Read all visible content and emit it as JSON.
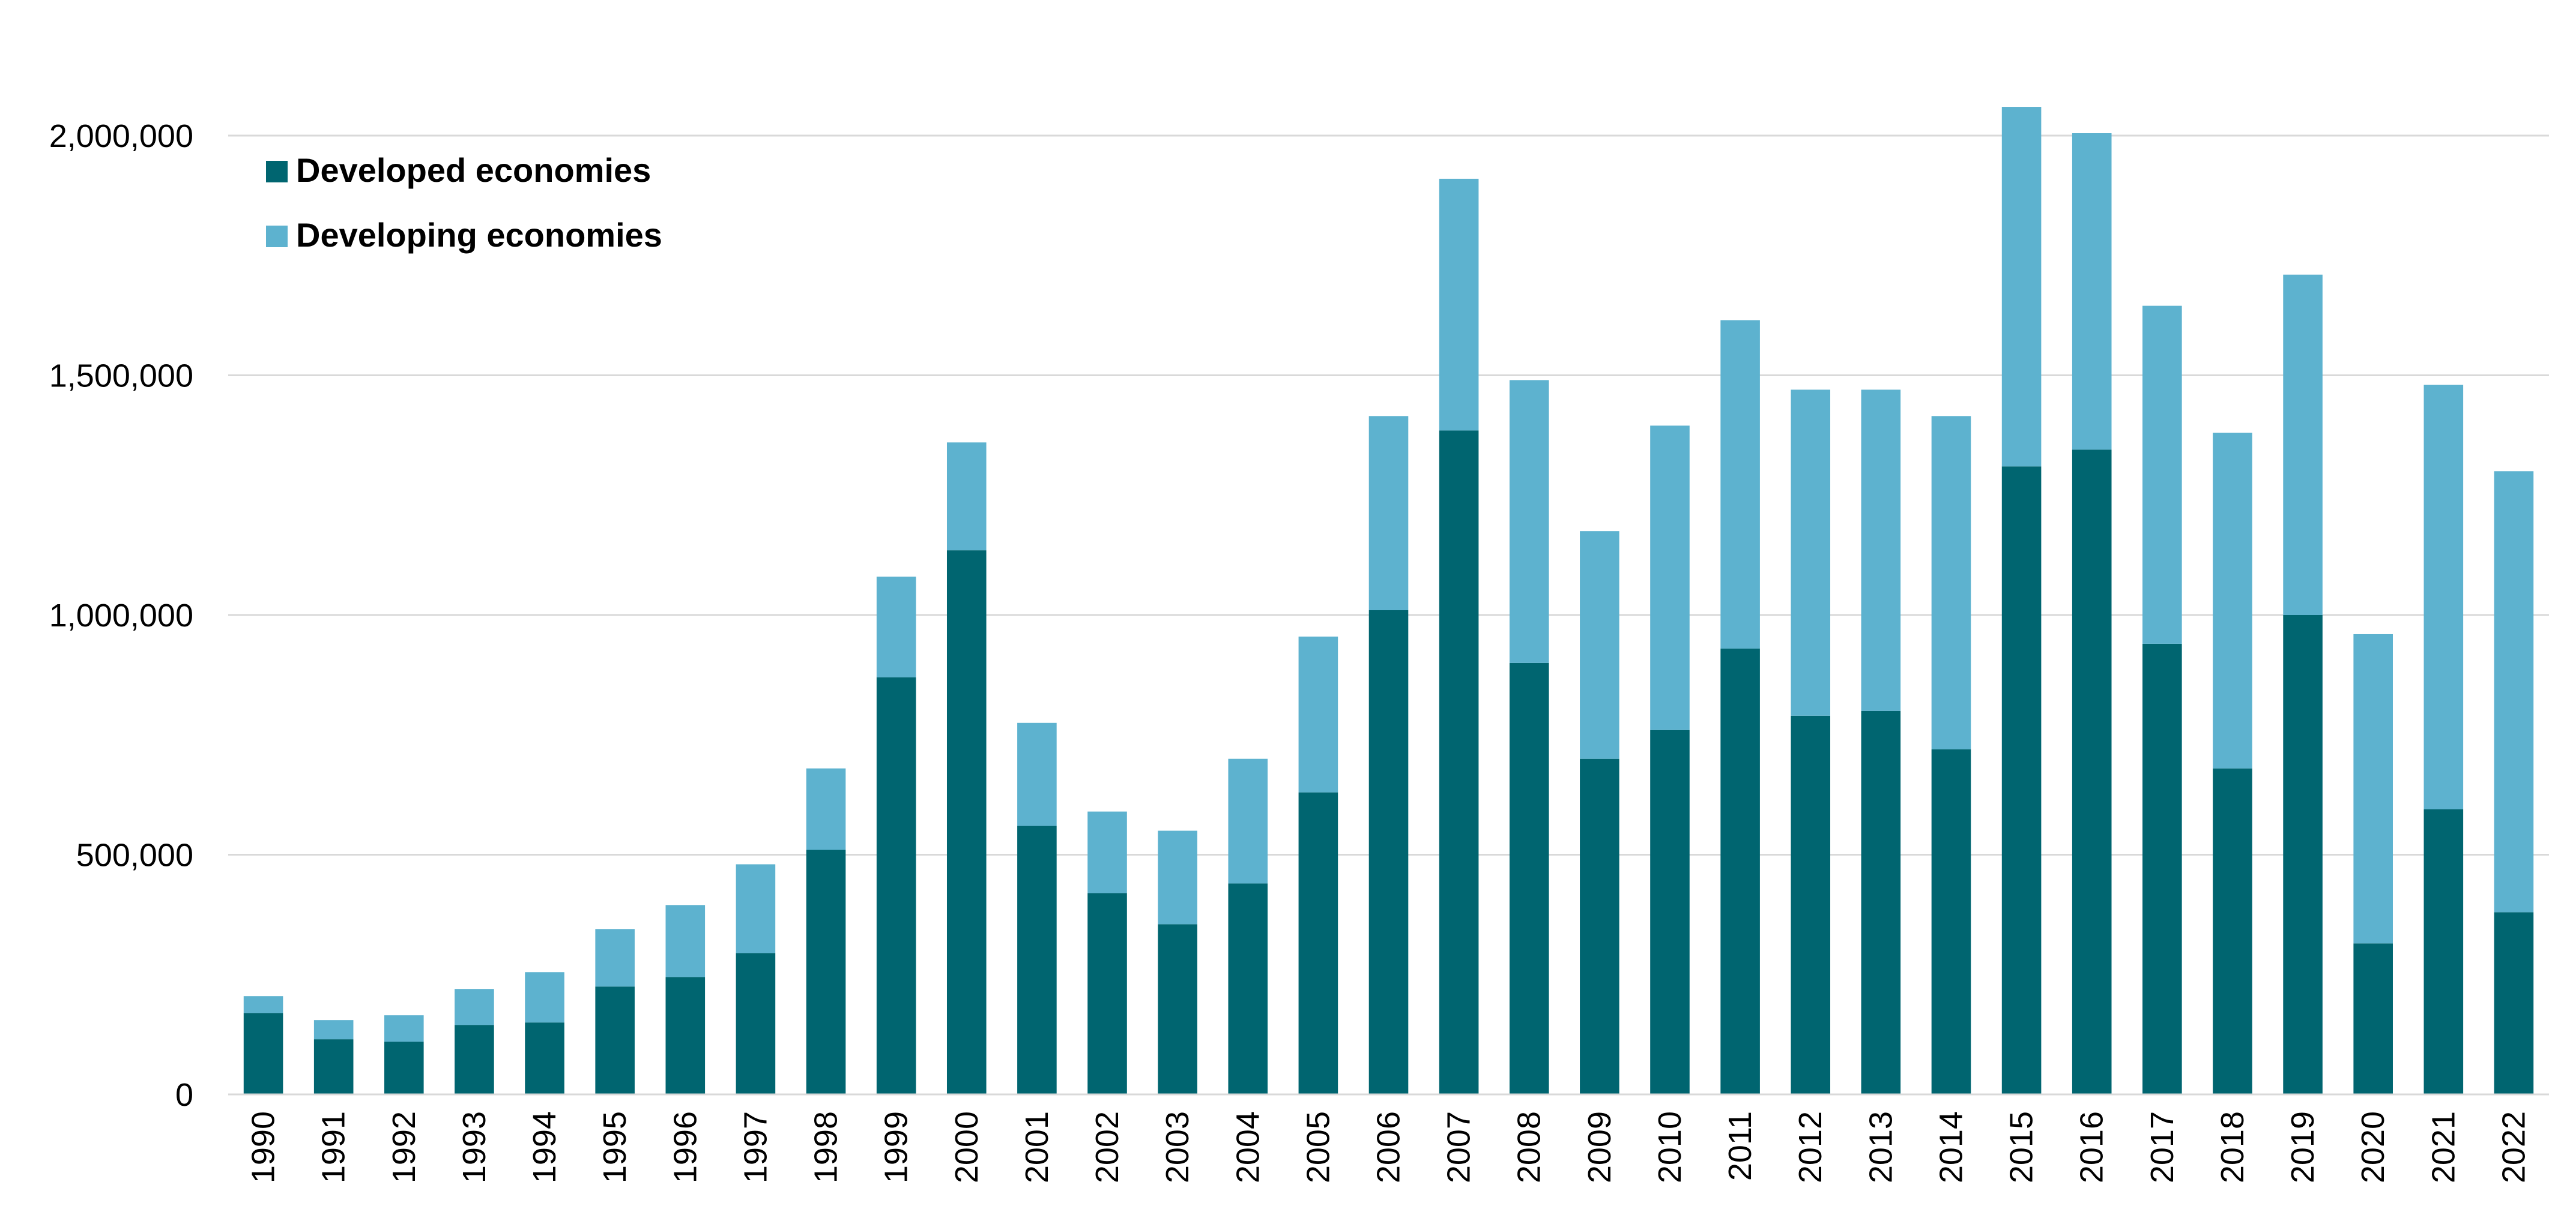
{
  "chart_data": {
    "type": "bar",
    "stacked": true,
    "title": "",
    "xlabel": "",
    "ylabel": "",
    "ylim": [
      0,
      2000000
    ],
    "yticks": [
      0,
      500000,
      1000000,
      1500000,
      2000000
    ],
    "ytick_labels": [
      "0",
      "500,000",
      "1,000,000",
      "1,500,000",
      "2,000,000"
    ],
    "grid": "horizontal",
    "legend_position": "top-left",
    "categories": [
      "1990",
      "1991",
      "1992",
      "1993",
      "1994",
      "1995",
      "1996",
      "1997",
      "1998",
      "1999",
      "2000",
      "2001",
      "2002",
      "2003",
      "2004",
      "2005",
      "2006",
      "2007",
      "2008",
      "2009",
      "2010",
      "2011",
      "2012",
      "2013",
      "2014",
      "2015",
      "2016",
      "2017",
      "2018",
      "2019",
      "2020",
      "2021",
      "2022"
    ],
    "series": [
      {
        "name": "Developed economies",
        "color": "#006570",
        "values": [
          170000,
          115000,
          110000,
          145000,
          150000,
          225000,
          245000,
          295000,
          510000,
          870000,
          1135000,
          560000,
          420000,
          355000,
          440000,
          630000,
          1010000,
          1385000,
          900000,
          700000,
          760000,
          930000,
          790000,
          800000,
          720000,
          1310000,
          1345000,
          940000,
          680000,
          1000000,
          315000,
          595000,
          380000
        ]
      },
      {
        "name": "Developing economies",
        "color": "#5db2cf",
        "values": [
          35000,
          40000,
          55000,
          75000,
          105000,
          120000,
          150000,
          185000,
          170000,
          210000,
          225000,
          215000,
          170000,
          195000,
          260000,
          325000,
          405000,
          525000,
          590000,
          475000,
          635000,
          685000,
          680000,
          670000,
          695000,
          750000,
          660000,
          705000,
          700000,
          710000,
          645000,
          885000,
          920000
        ]
      }
    ]
  }
}
